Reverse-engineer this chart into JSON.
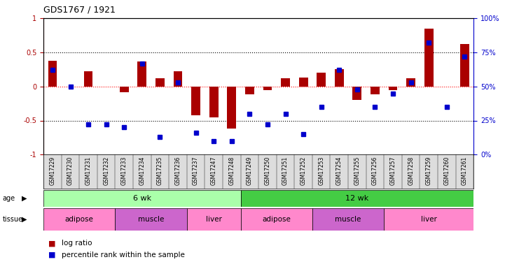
{
  "title": "GDS1767 / 1921",
  "samples": [
    "GSM17229",
    "GSM17230",
    "GSM17231",
    "GSM17232",
    "GSM17233",
    "GSM17234",
    "GSM17235",
    "GSM17236",
    "GSM17237",
    "GSM17247",
    "GSM17248",
    "GSM17249",
    "GSM17250",
    "GSM17251",
    "GSM17252",
    "GSM17253",
    "GSM17254",
    "GSM17255",
    "GSM17256",
    "GSM17257",
    "GSM17258",
    "GSM17259",
    "GSM17260",
    "GSM17261"
  ],
  "log_ratio": [
    0.38,
    0.0,
    0.22,
    0.0,
    -0.08,
    0.37,
    0.12,
    0.22,
    -0.42,
    -0.45,
    -0.62,
    -0.12,
    -0.05,
    0.12,
    0.13,
    0.2,
    0.25,
    -0.2,
    -0.12,
    -0.05,
    0.12,
    0.85,
    0.0,
    0.62
  ],
  "percentile_rank": [
    62,
    50,
    22,
    22,
    20,
    67,
    13,
    53,
    16,
    10,
    10,
    30,
    22,
    30,
    15,
    35,
    62,
    48,
    35,
    45,
    53,
    82,
    35,
    72
  ],
  "age_groups": [
    {
      "label": "6 wk",
      "start": 0,
      "end": 11,
      "color": "#aaffaa"
    },
    {
      "label": "12 wk",
      "start": 11,
      "end": 24,
      "color": "#44cc44"
    }
  ],
  "tissue_groups": [
    {
      "label": "adipose",
      "start": 0,
      "end": 4,
      "color": "#ff88cc"
    },
    {
      "label": "muscle",
      "start": 4,
      "end": 8,
      "color": "#cc66cc"
    },
    {
      "label": "liver",
      "start": 8,
      "end": 11,
      "color": "#ff88cc"
    },
    {
      "label": "adipose",
      "start": 11,
      "end": 15,
      "color": "#ff88cc"
    },
    {
      "label": "muscle",
      "start": 15,
      "end": 19,
      "color": "#cc66cc"
    },
    {
      "label": "liver",
      "start": 19,
      "end": 24,
      "color": "#ff88cc"
    }
  ],
  "bar_color": "#aa0000",
  "dot_color": "#0000cc",
  "ylim_left": [
    -1,
    1
  ],
  "ylim_right": [
    0,
    100
  ],
  "yticks_left": [
    -1,
    -0.5,
    0,
    0.5,
    1
  ],
  "yticks_right": [
    0,
    25,
    50,
    75,
    100
  ],
  "ytick_labels_left": [
    "-1",
    "-0.5",
    "0",
    "0.5",
    "1"
  ],
  "ytick_labels_right": [
    "0%",
    "25%",
    "50%",
    "75%",
    "100%"
  ]
}
